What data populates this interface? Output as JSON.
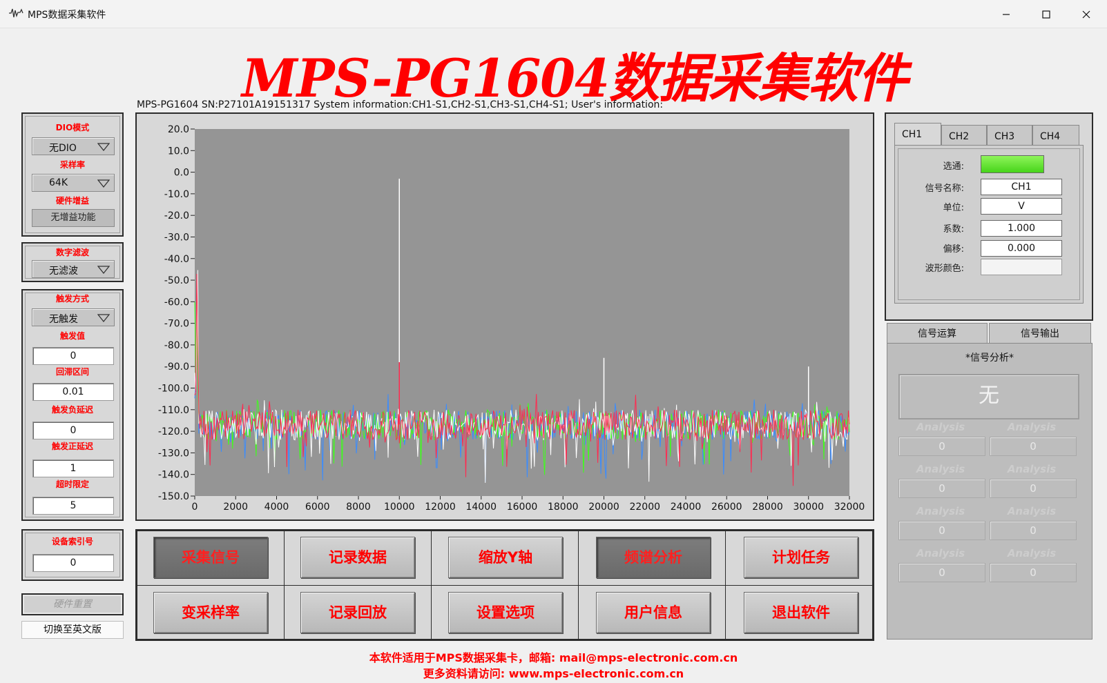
{
  "window": {
    "title": "MPS数据采集软件"
  },
  "app_title": "MPS-PG1604数据采集软件",
  "sys_info": "MPS-PG1604 SN:P27101A19151317 System information:CH1-S1,CH2-S1,CH3-S1,CH4-S1; User's information:",
  "left_panel": {
    "dio_label": "DIO模式",
    "dio_value": "无DIO",
    "rate_label": "采样率",
    "rate_value": "64K",
    "gain_label": "硬件增益",
    "gain_value": "无增益功能",
    "filter_label": "数字滤波",
    "filter_value": "无滤波",
    "trigger_mode_label": "触发方式",
    "trigger_mode_value": "无触发",
    "trigger_value_label": "触发值",
    "trigger_value": "0",
    "hysteresis_label": "回滞区间",
    "hysteresis_value": "0.01",
    "neg_delay_label": "触发负延迟",
    "neg_delay_value": "0",
    "pos_delay_label": "触发正延迟",
    "pos_delay_value": "1",
    "timeout_label": "超时限定",
    "timeout_value": "5",
    "device_index_label": "设备索引号",
    "device_index_value": "0",
    "reset_label": "硬件重置",
    "lang_label": "切换至英文版"
  },
  "buttons": {
    "acquire": "采集信号",
    "record": "记录数据",
    "zoom_y": "缩放Y轴",
    "spectrum": "频谱分析",
    "schedule": "计划任务",
    "change_rate": "变采样率",
    "playback": "记录回放",
    "settings": "设置选项",
    "user_info": "用户信息",
    "exit": "退出软件"
  },
  "channel_panel": {
    "tabs": [
      "CH1",
      "CH2",
      "CH3",
      "CH4"
    ],
    "enable_label": "选通:",
    "name_label": "信号名称:",
    "name_value": "CH1",
    "unit_label": "单位:",
    "unit_value": "V",
    "coef_label": "系数:",
    "coef_value": "1.000",
    "offset_label": "偏移:",
    "offset_value": "0.000",
    "color_label": "波形颜色:"
  },
  "signal_panel": {
    "tabs": [
      "信号运算",
      "信号输出"
    ],
    "title": "*信号分析*",
    "result": "无",
    "analysis_label": "Analysis",
    "analysis_values": [
      "0",
      "0",
      "0",
      "0",
      "0",
      "0",
      "0",
      "0"
    ]
  },
  "footer": {
    "line1": "本软件适用于MPS数据采集卡，邮箱: mail@mps-electronic.com.cn",
    "line2": "更多资料请访问: www.mps-electronic.com.cn"
  },
  "colors": {
    "accent_red": "#ff0000",
    "plot_bg": "#959595",
    "enable_led": "#5be01f"
  },
  "chart_data": {
    "type": "line",
    "title": "",
    "xlabel": "",
    "ylabel": "",
    "xlim": [
      0,
      32000
    ],
    "ylim": [
      -150,
      20
    ],
    "x_ticks": [
      0,
      2000,
      4000,
      6000,
      8000,
      10000,
      12000,
      14000,
      16000,
      18000,
      20000,
      22000,
      24000,
      26000,
      28000,
      30000,
      32000
    ],
    "y_ticks": [
      "20.0",
      "10.0",
      "0.0",
      "-10.0",
      "-20.0",
      "-30.0",
      "-40.0",
      "-50.0",
      "-60.0",
      "-70.0",
      "-80.0",
      "-90.0",
      "-100.0",
      "-110.0",
      "-120.0",
      "-130.0",
      "-140.0",
      "-150.0"
    ],
    "noise_floor_db": -117,
    "series": [
      {
        "color": "#ffffff",
        "peaks": [
          {
            "x": 10000,
            "y": -3
          },
          {
            "x": 20000,
            "y": -86
          },
          {
            "x": 30000,
            "y": -90
          }
        ]
      },
      {
        "color": "#ff2a50",
        "peaks": [
          {
            "x": 10000,
            "y": -88
          }
        ]
      },
      {
        "color": "#3dff1a",
        "peaks": []
      },
      {
        "color": "#3a8cff",
        "peaks": []
      }
    ]
  }
}
